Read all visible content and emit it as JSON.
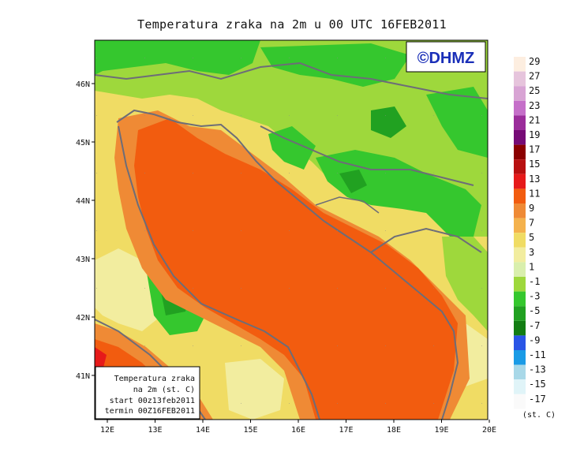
{
  "title": "Temperatura zraka na 2m u 00 UTC 16FEB2011",
  "logo": "©DHMZ",
  "axes": {
    "lon_ticks": [
      "12E",
      "13E",
      "14E",
      "15E",
      "16E",
      "17E",
      "18E",
      "19E",
      "20E"
    ],
    "lat_ticks": [
      "46N",
      "45N",
      "44N",
      "43N",
      "42N",
      "41N"
    ]
  },
  "legend_box": {
    "line1": "Temperatura zraka",
    "line2": "na 2m (st. C)",
    "line3": "start 00z13feb2011",
    "line4": "termin 00Z16FEB2011"
  },
  "colorbar": {
    "unit": "(st. C)",
    "labels": [
      "29",
      "27",
      "25",
      "23",
      "21",
      "19",
      "17",
      "15",
      "13",
      "11",
      "9",
      "7",
      "5",
      "3",
      "1",
      "-1",
      "-3",
      "-5",
      "-7",
      "-9",
      "-11",
      "-13",
      "-15",
      "-17"
    ],
    "colors": [
      "#fdeee0",
      "#e6c4dc",
      "#d8a4d4",
      "#c56fc9",
      "#9b2d9b",
      "#760b76",
      "#8b0000",
      "#b81010",
      "#e61a1a",
      "#f25c0f",
      "#ef8a35",
      "#f4b24d",
      "#f0dc64",
      "#f2ed9f",
      "#d9efad",
      "#9ed83c",
      "#35c72e",
      "#21a121",
      "#137d13",
      "#2a55e6",
      "#1a9be6",
      "#a8d8e8",
      "#e0f4f8",
      "#fafafa"
    ]
  },
  "colors": {
    "sea_warm": "#f25c0f",
    "coast_orange": "#ef8a35",
    "land_cool": "#9ed83c",
    "land_cold": "#35c72e",
    "border": "#6d6d78"
  }
}
